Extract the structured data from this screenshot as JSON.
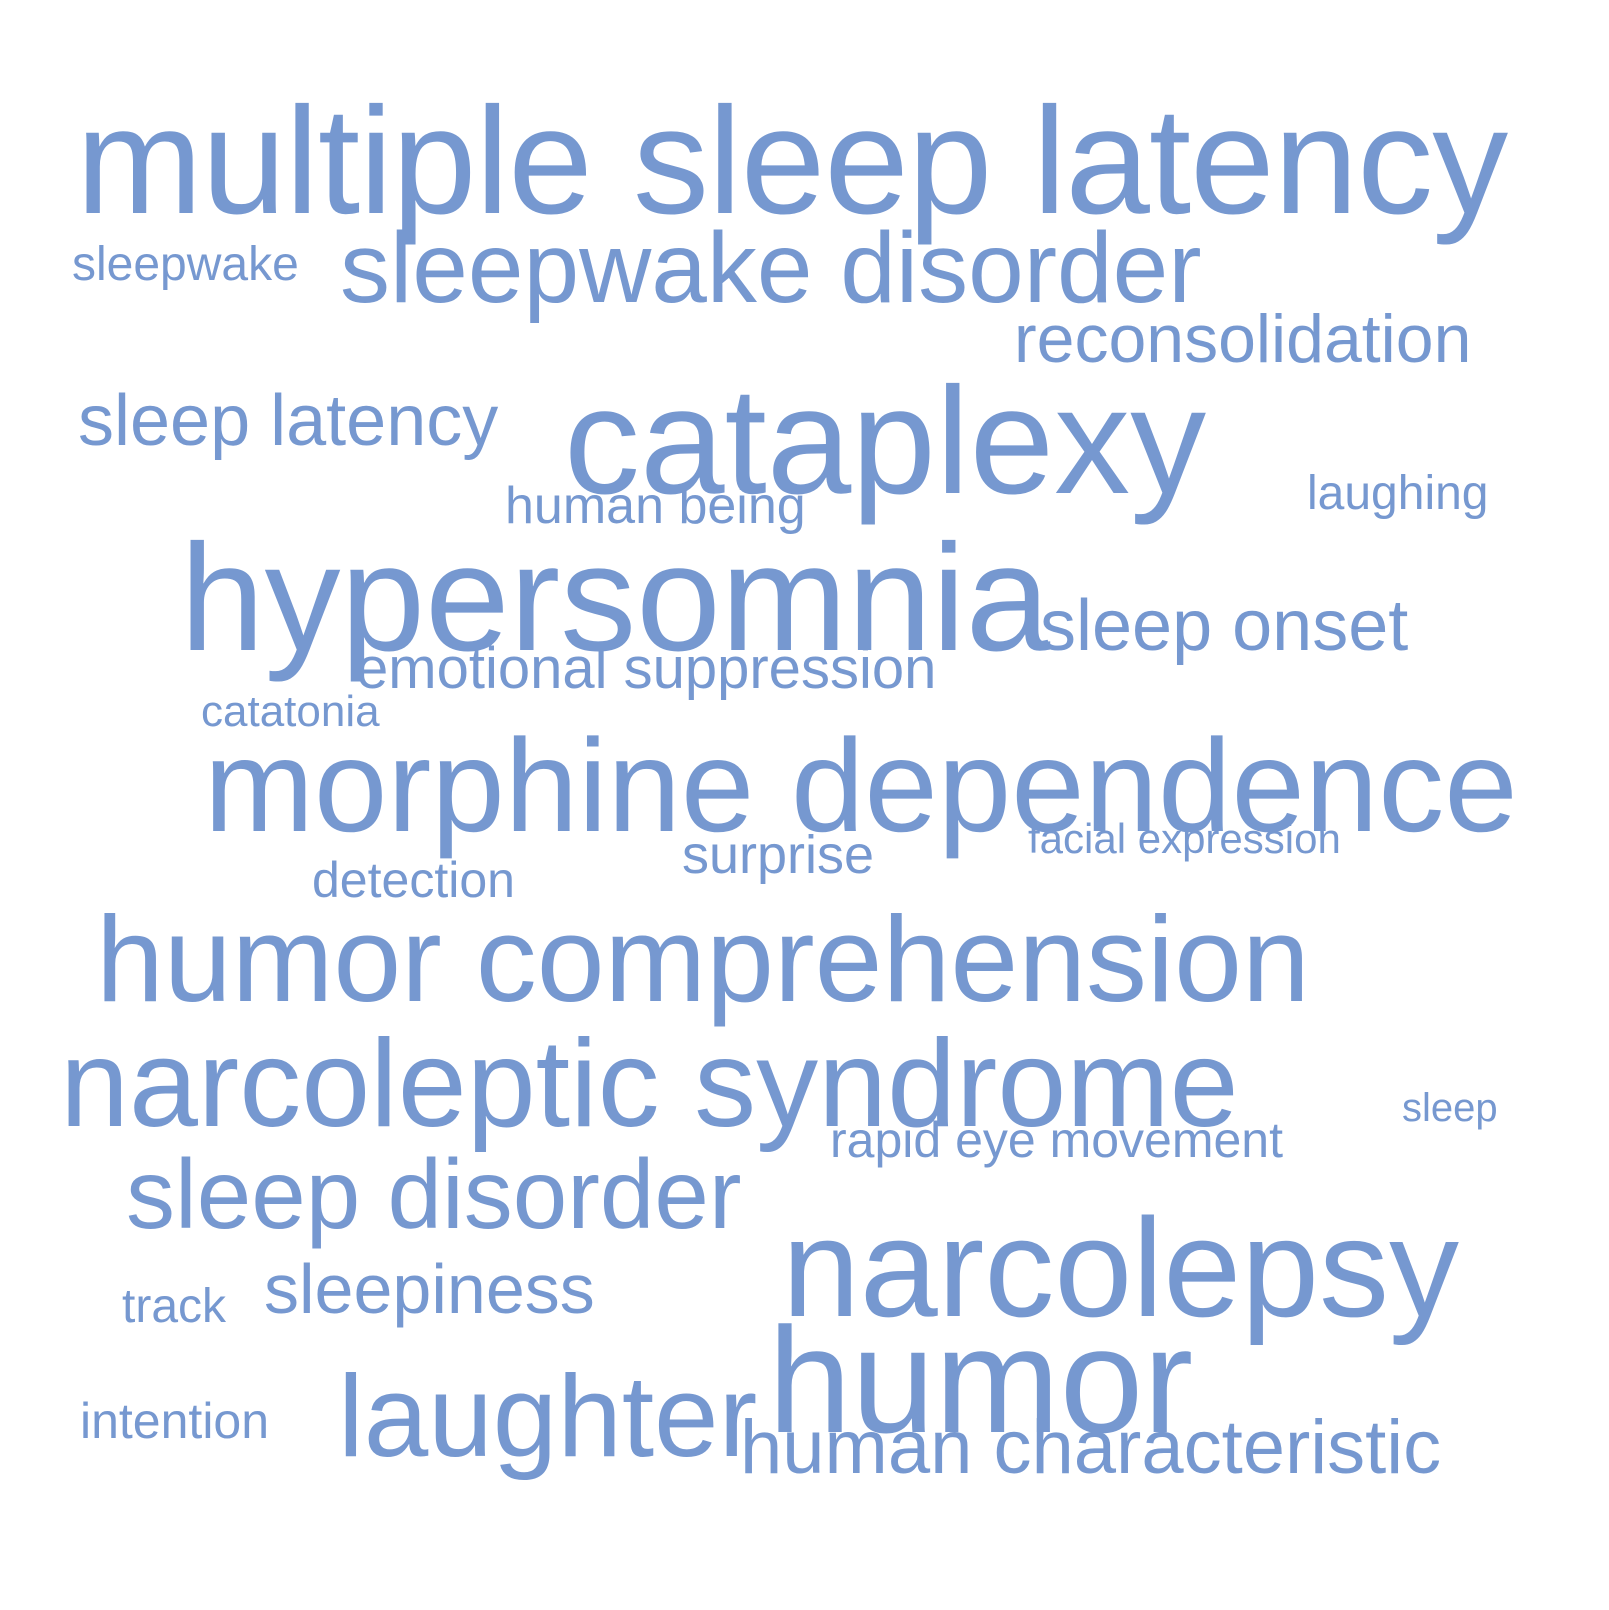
{
  "cloud": {
    "color": "#7698d0",
    "background": "#ffffff",
    "words": [
      "multiple sleep latency",
      "sleepwake",
      "sleepwake disorder",
      "reconsolidation",
      "sleep latency",
      "cataplexy",
      "human being",
      "laughing",
      "hypersomnia",
      "sleep onset",
      "emotional suppression",
      "catatonia",
      "morphine dependence",
      "facial expression",
      "surprise",
      "detection",
      "humor comprehension",
      "narcoleptic syndrome",
      "sleep",
      "rapid eye movement",
      "sleep disorder",
      "narcolepsy",
      "track",
      "sleepiness",
      "humor",
      "intention",
      "laughter",
      "human characteristic"
    ]
  }
}
